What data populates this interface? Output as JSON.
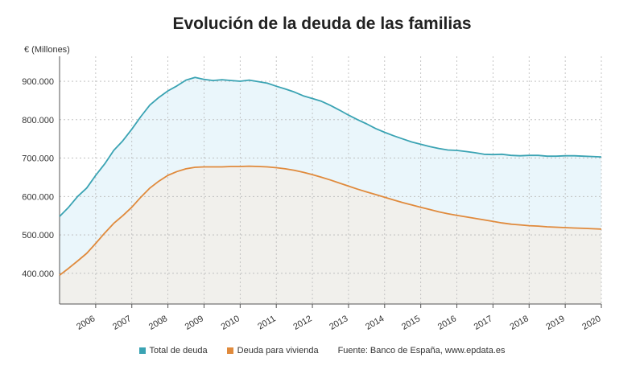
{
  "chart_data": {
    "type": "area",
    "title": "Evolución de la deuda de las familias",
    "ylabel": "€ (Millones)",
    "xlabel": "",
    "ylim": [
      320000,
      965000
    ],
    "xlim": [
      2005.0,
      2020.0
    ],
    "y_ticks": [
      400000,
      500000,
      600000,
      700000,
      800000,
      900000
    ],
    "y_tick_labels": [
      "400.000",
      "500.000",
      "600.000",
      "700.000",
      "800.000",
      "900.000"
    ],
    "x_ticks": [
      2006,
      2007,
      2008,
      2009,
      2010,
      2011,
      2012,
      2013,
      2014,
      2015,
      2016,
      2017,
      2018,
      2019,
      2020
    ],
    "x_tick_labels": [
      "2006",
      "2007",
      "2008",
      "2009",
      "2010",
      "2011",
      "2012",
      "2013",
      "2014",
      "2015",
      "2016",
      "2017",
      "2018",
      "2019",
      "2020"
    ],
    "grid": true,
    "legend": "bottom",
    "series": [
      {
        "name": "Total de deuda",
        "color": "#3aa3b3",
        "fill": "#eaf6fb",
        "points": [
          [
            2005.0,
            548000
          ],
          [
            2005.25,
            572000
          ],
          [
            2005.5,
            600000
          ],
          [
            2005.75,
            622000
          ],
          [
            2006.0,
            655000
          ],
          [
            2006.25,
            685000
          ],
          [
            2006.5,
            720000
          ],
          [
            2006.75,
            745000
          ],
          [
            2007.0,
            775000
          ],
          [
            2007.25,
            808000
          ],
          [
            2007.5,
            838000
          ],
          [
            2007.75,
            858000
          ],
          [
            2008.0,
            875000
          ],
          [
            2008.25,
            888000
          ],
          [
            2008.5,
            903000
          ],
          [
            2008.75,
            910000
          ],
          [
            2009.0,
            905000
          ],
          [
            2009.25,
            902000
          ],
          [
            2009.5,
            904000
          ],
          [
            2009.75,
            902000
          ],
          [
            2010.0,
            900000
          ],
          [
            2010.25,
            903000
          ],
          [
            2010.5,
            899000
          ],
          [
            2010.75,
            895000
          ],
          [
            2011.0,
            887000
          ],
          [
            2011.25,
            880000
          ],
          [
            2011.5,
            872000
          ],
          [
            2011.75,
            862000
          ],
          [
            2012.0,
            855000
          ],
          [
            2012.25,
            848000
          ],
          [
            2012.5,
            837000
          ],
          [
            2012.75,
            825000
          ],
          [
            2013.0,
            812000
          ],
          [
            2013.25,
            800000
          ],
          [
            2013.5,
            789000
          ],
          [
            2013.75,
            777000
          ],
          [
            2014.0,
            767000
          ],
          [
            2014.25,
            758000
          ],
          [
            2014.5,
            750000
          ],
          [
            2014.75,
            742000
          ],
          [
            2015.0,
            736000
          ],
          [
            2015.25,
            730000
          ],
          [
            2015.5,
            725000
          ],
          [
            2015.75,
            721000
          ],
          [
            2016.0,
            720000
          ],
          [
            2016.25,
            717000
          ],
          [
            2016.5,
            714000
          ],
          [
            2016.75,
            710000
          ],
          [
            2017.0,
            709000
          ],
          [
            2017.25,
            710000
          ],
          [
            2017.5,
            707000
          ],
          [
            2017.75,
            706000
          ],
          [
            2018.0,
            707000
          ],
          [
            2018.25,
            707000
          ],
          [
            2018.5,
            705000
          ],
          [
            2018.75,
            705000
          ],
          [
            2019.0,
            706000
          ],
          [
            2019.25,
            706000
          ],
          [
            2019.5,
            705000
          ],
          [
            2019.75,
            704000
          ],
          [
            2020.0,
            703000
          ]
        ]
      },
      {
        "name": "Deuda para vivienda",
        "color": "#e08a3c",
        "fill": "#f1f0ec",
        "points": [
          [
            2005.0,
            395000
          ],
          [
            2005.25,
            413000
          ],
          [
            2005.5,
            432000
          ],
          [
            2005.75,
            452000
          ],
          [
            2006.0,
            478000
          ],
          [
            2006.25,
            505000
          ],
          [
            2006.5,
            530000
          ],
          [
            2006.75,
            550000
          ],
          [
            2007.0,
            572000
          ],
          [
            2007.25,
            598000
          ],
          [
            2007.5,
            622000
          ],
          [
            2007.75,
            640000
          ],
          [
            2008.0,
            655000
          ],
          [
            2008.25,
            665000
          ],
          [
            2008.5,
            672000
          ],
          [
            2008.75,
            676000
          ],
          [
            2009.0,
            677000
          ],
          [
            2009.25,
            677000
          ],
          [
            2009.5,
            677000
          ],
          [
            2009.75,
            678000
          ],
          [
            2010.0,
            678000
          ],
          [
            2010.25,
            679000
          ],
          [
            2010.5,
            678000
          ],
          [
            2010.75,
            677000
          ],
          [
            2011.0,
            675000
          ],
          [
            2011.25,
            672000
          ],
          [
            2011.5,
            668000
          ],
          [
            2011.75,
            663000
          ],
          [
            2012.0,
            657000
          ],
          [
            2012.25,
            650000
          ],
          [
            2012.5,
            643000
          ],
          [
            2012.75,
            635000
          ],
          [
            2013.0,
            627000
          ],
          [
            2013.25,
            619000
          ],
          [
            2013.5,
            612000
          ],
          [
            2013.75,
            605000
          ],
          [
            2014.0,
            598000
          ],
          [
            2014.25,
            591000
          ],
          [
            2014.5,
            584000
          ],
          [
            2014.75,
            578000
          ],
          [
            2015.0,
            572000
          ],
          [
            2015.25,
            566000
          ],
          [
            2015.5,
            560000
          ],
          [
            2015.75,
            555000
          ],
          [
            2016.0,
            551000
          ],
          [
            2016.25,
            547000
          ],
          [
            2016.5,
            543000
          ],
          [
            2016.75,
            539000
          ],
          [
            2017.0,
            535000
          ],
          [
            2017.25,
            531000
          ],
          [
            2017.5,
            528000
          ],
          [
            2017.75,
            526000
          ],
          [
            2018.0,
            524000
          ],
          [
            2018.25,
            523000
          ],
          [
            2018.5,
            521000
          ],
          [
            2018.75,
            520000
          ],
          [
            2019.0,
            519000
          ],
          [
            2019.25,
            518000
          ],
          [
            2019.5,
            517000
          ],
          [
            2019.75,
            516000
          ],
          [
            2020.0,
            515000
          ]
        ]
      }
    ],
    "source": "Fuente: Banco de España, www.epdata.es"
  }
}
